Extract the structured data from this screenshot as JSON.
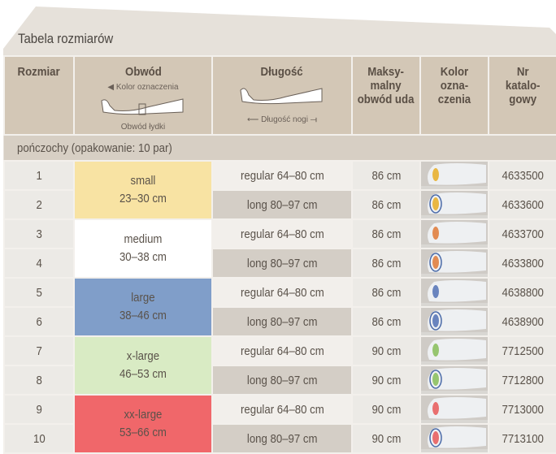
{
  "title": "Tabela rozmiarów",
  "headers": {
    "size": "Rozmiar",
    "circumference": "Obwód",
    "circ_marker": "◀ Kolor oznaczenia",
    "circ_calf": "Obwód łydki",
    "length": "Długość",
    "length_leg": "Długość nogi",
    "thigh": "Maksy-\nmalny\nobwód uda",
    "color": "Kolor\nozna-\nczenia",
    "catalog": "Nr\nkatalo-\ngowy"
  },
  "section": "pończochy (opakowanie: 10 par)",
  "sizes": [
    {
      "name": "small",
      "range": "23–30 cm",
      "color": "#f8e3a3"
    },
    {
      "name": "medium",
      "range": "30–38 cm",
      "color": "#ffffff"
    },
    {
      "name": "large",
      "range": "38–46 cm",
      "color": "#809ec9"
    },
    {
      "name": "x-large",
      "range": "46–53 cm",
      "color": "#d9ebc4"
    },
    {
      "name": "xx-large",
      "range": "53–66 cm",
      "color": "#f0676a"
    }
  ],
  "rows": [
    {
      "n": "1",
      "len": "regular 64–80 cm",
      "thigh": "86 cm",
      "cat": "4633500",
      "marker": "#e8b030",
      "ring": false
    },
    {
      "n": "2",
      "len": "long 80–97 cm",
      "thigh": "86 cm",
      "cat": "4633600",
      "marker": "#e8b030",
      "ring": true
    },
    {
      "n": "3",
      "len": "regular 64–80 cm",
      "thigh": "86 cm",
      "cat": "4633700",
      "marker": "#e08040",
      "ring": false
    },
    {
      "n": "4",
      "len": "long 80–97 cm",
      "thigh": "86 cm",
      "cat": "4633800",
      "marker": "#e08040",
      "ring": true
    },
    {
      "n": "5",
      "len": "regular 64–80 cm",
      "thigh": "86 cm",
      "cat": "4638800",
      "marker": "#5a78b8",
      "ring": false
    },
    {
      "n": "6",
      "len": "long 80–97 cm",
      "thigh": "86 cm",
      "cat": "4638900",
      "marker": "#5a78b8",
      "ring": true
    },
    {
      "n": "7",
      "len": "regular 64–80 cm",
      "thigh": "90 cm",
      "cat": "7712500",
      "marker": "#8cc060",
      "ring": false
    },
    {
      "n": "8",
      "len": "long 80–97 cm",
      "thigh": "90 cm",
      "cat": "7712800",
      "marker": "#8cc060",
      "ring": true
    },
    {
      "n": "9",
      "len": "regular 64–80 cm",
      "thigh": "90 cm",
      "cat": "7713000",
      "marker": "#e86060",
      "ring": false
    },
    {
      "n": "10",
      "len": "long 80–97 cm",
      "thigh": "90 cm",
      "cat": "7713100",
      "marker": "#e86060",
      "ring": true
    }
  ]
}
